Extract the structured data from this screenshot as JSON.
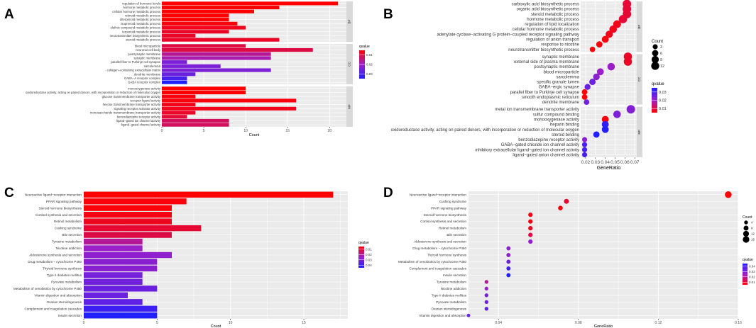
{
  "panel_labels": [
    "A",
    "B",
    "C",
    "D"
  ],
  "colors": {
    "panel_bg": "#ebebeb",
    "strip_bg": "#d9d9d9",
    "high": "#ff0000",
    "mid": "#9c20c8",
    "low": "#1f1fff"
  },
  "chart_data": [
    {
      "id": "A",
      "type": "bar",
      "orientation": "horizontal",
      "xlabel": "Count",
      "xlim": [
        0,
        22
      ],
      "xticks": [
        0,
        5,
        10,
        15,
        20
      ],
      "legend": {
        "title": "qvalue",
        "labels": [
          "0.01",
          "0.02",
          "0.03"
        ],
        "range": [
          0.005,
          0.035
        ]
      },
      "facets": [
        {
          "name": "BP",
          "categories": [
            "regulation of hormone levels",
            "hormone metabolic process",
            "cellular hormone metabolic process",
            "retinoid metabolic process",
            "diterpenoid metabolic process",
            "isoprenoid metabolic process",
            "olefinic compound metabolic process",
            "terpenoid metabolic process",
            "neurotransmitter biosynthetic process",
            "steroid metabolic process"
          ],
          "values": [
            21,
            14,
            11,
            8,
            8,
            9,
            10,
            8,
            4,
            14
          ],
          "qvalues": [
            0.005,
            0.005,
            0.005,
            0.005,
            0.005,
            0.006,
            0.007,
            0.008,
            0.008,
            0.008
          ]
        },
        {
          "name": "CC",
          "categories": [
            "blood microparticle",
            "neuronal cell body",
            "postsynaptic membrane",
            "synaptic membrane",
            "parallel fiber to Purkinje cell synapse",
            "sarcolemma",
            "collagen−containing extracellular matrix",
            "dendrite membrane",
            "GABA−A receptor complex",
            "GABA receptor complex"
          ],
          "values": [
            10,
            18,
            13,
            13,
            3,
            7,
            13,
            4,
            3,
            3
          ],
          "qvalues": [
            0.01,
            0.01,
            0.016,
            0.018,
            0.024,
            0.024,
            0.024,
            0.026,
            0.03,
            0.035
          ]
        },
        {
          "name": "MF",
          "categories": [
            "monooxygenase activity",
            "oxidoreductase activity, acting on paired donors, with incorporation or reduction of molecular oxygen",
            "glucose transmembrane transporter activity",
            "receptor ligand activity",
            "hexose transmembrane transporter activity",
            "signaling receptor activator activity",
            "monosaccharide transmembrane transporter activity",
            "benzodiazepine receptor activity",
            "ligand−gated ion channel activity",
            "ligand−gated channel activity"
          ],
          "values": [
            10,
            10,
            4,
            16,
            4,
            16,
            4,
            3,
            8,
            8
          ],
          "qvalues": [
            0.005,
            0.005,
            0.006,
            0.006,
            0.007,
            0.007,
            0.008,
            0.009,
            0.012,
            0.012
          ]
        }
      ]
    },
    {
      "id": "B",
      "type": "scatter",
      "xlabel": "GeneRatio",
      "xlim": [
        0.015,
        0.072
      ],
      "xticks": [
        0.02,
        0.03,
        0.04,
        0.05,
        0.06,
        0.07
      ],
      "xticklabels": [
        "0.02",
        "0.03",
        "0.04",
        "0.05",
        "0.06",
        "0.07"
      ],
      "size_legend": {
        "title": "Count",
        "values": [
          3,
          6,
          9,
          12
        ]
      },
      "color_legend": {
        "title": "qvalue",
        "labels": [
          "0.03",
          "0.02",
          "0.01"
        ],
        "range": [
          0.005,
          0.035
        ]
      },
      "facets": [
        {
          "name": "BP",
          "categories": [
            "carboxylic acid biosynthetic process",
            "organic acid biosynthetic process",
            "steroid metabolic process",
            "hormone metabolic process",
            "regulation of lipid localization",
            "cellular hormone metabolic process",
            "adenylate cyclase−activating G protein−coupled receptor signaling pathway",
            "regulation of anion transport",
            "response to nicotine",
            "neurotransmitter biosynthetic process"
          ],
          "x": [
            0.062,
            0.062,
            0.062,
            0.058,
            0.052,
            0.048,
            0.044,
            0.04,
            0.034,
            0.027
          ],
          "counts": [
            14,
            14,
            14,
            13,
            11,
            10,
            9,
            8,
            6,
            4
          ],
          "qvalues": [
            0.009,
            0.009,
            0.009,
            0.009,
            0.007,
            0.007,
            0.007,
            0.006,
            0.006,
            0.006
          ]
        },
        {
          "name": "CC",
          "categories": [
            "synaptic membrane",
            "external side of plasma membrane",
            "postsynaptic membrane",
            "blood microparticle",
            "sarcolemma",
            "specific granule lumen",
            "GABA−ergic synapse",
            "parallel fiber to Purkinje cell synapse",
            "smooth endoplasmic reticulum",
            "dendrite membrane"
          ],
          "x": [
            0.063,
            0.063,
            0.046,
            0.035,
            0.031,
            0.027,
            0.022,
            0.019,
            0.019,
            0.021
          ],
          "counts": [
            13,
            13,
            10,
            8,
            7,
            6,
            5,
            4,
            4,
            4
          ],
          "qvalues": [
            0.008,
            0.008,
            0.02,
            0.02,
            0.022,
            0.026,
            0.026,
            0.004,
            0.004,
            0.025
          ]
        },
        {
          "name": "MF",
          "categories": [
            "metal ion transmembrane transporter activity",
            "sulfur compound binding",
            "monooxygenase activity",
            "heparin binding",
            "oxidoreductase activity, acting on paired donors, with incorporation or reduction of molecular oxygen",
            "steroid binding",
            "benzodiazepine receptor activity",
            "GABA−gated chloride ion channel activity",
            "inhibitory extracellular ligand−gated ion channel activity",
            "ligand−gated anion channel activity"
          ],
          "x": [
            0.066,
            0.052,
            0.04,
            0.04,
            0.04,
            0.031,
            0.019,
            0.019,
            0.019,
            0.019
          ],
          "counts": [
            14,
            10,
            8,
            8,
            8,
            6,
            3,
            3,
            3,
            3
          ],
          "qvalues": [
            0.023,
            0.024,
            0.006,
            0.033,
            0.034,
            0.036,
            0.022,
            0.03,
            0.03,
            0.03
          ]
        }
      ]
    },
    {
      "id": "C",
      "type": "bar",
      "orientation": "horizontal",
      "xlabel": "Count",
      "xlim": [
        0,
        18
      ],
      "xticks": [
        0,
        5,
        10,
        15
      ],
      "legend": {
        "title": "qvalue",
        "labels": [
          "0.01",
          "0.02",
          "0.03",
          "0.04"
        ],
        "range": [
          0.005,
          0.045
        ]
      },
      "categories": [
        "Neuroactive ligand−receptor interaction",
        "PPAR signaling pathway",
        "Steroid hormone biosynthesis",
        "Cortisol synthesis and secretion",
        "Retinol metabolism",
        "Cushing syndrome",
        "Bile secretion",
        "Tyrosine metabolism",
        "Nicotine addiction",
        "Aldosterone synthesis and secretion",
        "Drug metabolism − cytochrome P450",
        "Thyroid hormone synthesis",
        "Type II diabetes mellitus",
        "Pyruvate metabolism",
        "Metabolism of xenobiotics by cytochrome P450",
        "Vitamin digestion and absorption",
        "Ovarian steroidogenesis",
        "Complement and coagulation cascades",
        "Insulin secretion"
      ],
      "values": [
        17,
        7,
        6,
        6,
        6,
        8,
        6,
        4,
        4,
        6,
        5,
        5,
        4,
        4,
        5,
        3,
        4,
        5,
        5
      ],
      "qvalues": [
        0.005,
        0.006,
        0.006,
        0.007,
        0.008,
        0.01,
        0.012,
        0.02,
        0.025,
        0.027,
        0.028,
        0.028,
        0.031,
        0.032,
        0.033,
        0.033,
        0.035,
        0.04,
        0.045
      ]
    },
    {
      "id": "D",
      "type": "scatter",
      "xlabel": "GeneRatio",
      "xlim": [
        0.025,
        0.16
      ],
      "xticks": [
        0.04,
        0.08,
        0.12,
        0.16
      ],
      "xticklabels": [
        "0.04",
        "0.08",
        "0.12",
        "0.16"
      ],
      "size_legend": {
        "title": "Count",
        "values": [
          4,
          8,
          12,
          16
        ]
      },
      "color_legend": {
        "title": "qvalue",
        "labels": [
          "0.04",
          "0.03",
          "0.02",
          "0.01"
        ],
        "range": [
          0.005,
          0.045
        ]
      },
      "categories": [
        "Neuroactive ligand−receptor interaction",
        "Cushing syndrome",
        "PPAR signaling pathway",
        "Steroid hormone biosynthesis",
        "Cortisol synthesis and secretion",
        "Retinol metabolism",
        "Bile secretion",
        "Aldosterone synthesis and secretion",
        "Drug metabolism − cytochrome P450",
        "Thyroid hormone synthesis",
        "Metabolism of xenobiotics by cytochrome P450",
        "Complement and coagulation cascades",
        "Insulin secretion",
        "Tyrosine metabolism",
        "Nicotine addiction",
        "Type II diabetes mellitus",
        "Pyruvate metabolism",
        "Ovarian steroidogenesis",
        "Vitamin digestion and absorption"
      ],
      "x": [
        0.155,
        0.074,
        0.071,
        0.056,
        0.056,
        0.056,
        0.056,
        0.056,
        0.045,
        0.045,
        0.045,
        0.045,
        0.045,
        0.034,
        0.034,
        0.034,
        0.034,
        0.034,
        0.025
      ],
      "counts": [
        17,
        8,
        7,
        6,
        6,
        6,
        6,
        6,
        5,
        5,
        5,
        5,
        5,
        4,
        4,
        4,
        4,
        4,
        3
      ],
      "qvalues": [
        0.005,
        0.01,
        0.006,
        0.007,
        0.007,
        0.008,
        0.012,
        0.027,
        0.028,
        0.028,
        0.033,
        0.04,
        0.045,
        0.02,
        0.025,
        0.031,
        0.032,
        0.035,
        0.033
      ]
    }
  ]
}
